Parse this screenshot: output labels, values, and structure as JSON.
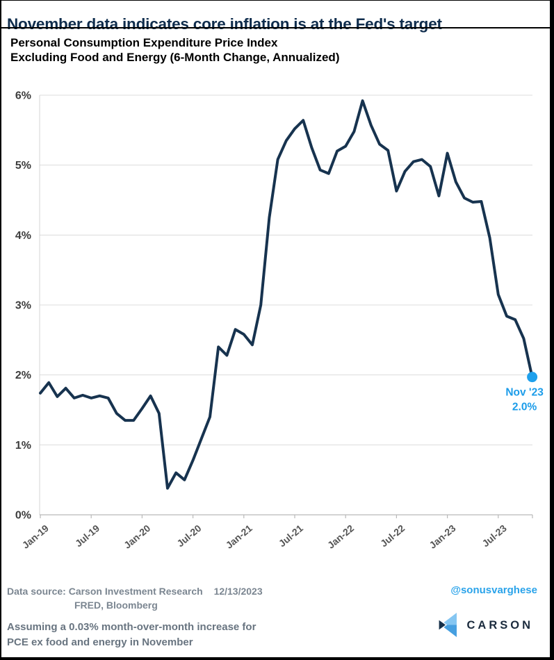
{
  "header": {
    "title": "November data indicates core inflation is at the Fed's target",
    "subtitle_line1": "Personal Consumption Expenditure Price Index",
    "subtitle_line2": "Excluding Food and Energy (6-Month Change, Annualized)"
  },
  "chart_data": {
    "type": "line",
    "title": "Personal Consumption Expenditure Price Index Excluding Food and Energy (6-Month Change, Annualized)",
    "x": [
      "Jan-19",
      "Feb-19",
      "Mar-19",
      "Apr-19",
      "May-19",
      "Jun-19",
      "Jul-19",
      "Aug-19",
      "Sep-19",
      "Oct-19",
      "Nov-19",
      "Dec-19",
      "Jan-20",
      "Feb-20",
      "Mar-20",
      "Apr-20",
      "May-20",
      "Jun-20",
      "Jul-20",
      "Aug-20",
      "Sep-20",
      "Oct-20",
      "Nov-20",
      "Dec-20",
      "Jan-21",
      "Feb-21",
      "Mar-21",
      "Apr-21",
      "May-21",
      "Jun-21",
      "Jul-21",
      "Aug-21",
      "Sep-21",
      "Oct-21",
      "Nov-21",
      "Dec-21",
      "Jan-22",
      "Feb-22",
      "Mar-22",
      "Apr-22",
      "May-22",
      "Jun-22",
      "Jul-22",
      "Aug-22",
      "Sep-22",
      "Oct-22",
      "Nov-22",
      "Dec-22",
      "Jan-23",
      "Feb-23",
      "Mar-23",
      "Apr-23",
      "May-23",
      "Jun-23",
      "Jul-23",
      "Aug-23",
      "Sep-23",
      "Oct-23",
      "Nov-23"
    ],
    "values": [
      1.74,
      1.89,
      1.69,
      1.81,
      1.67,
      1.71,
      1.67,
      1.7,
      1.67,
      1.45,
      1.35,
      1.35,
      1.52,
      1.7,
      1.45,
      0.38,
      0.6,
      0.5,
      0.78,
      1.09,
      1.4,
      2.4,
      2.28,
      2.65,
      2.58,
      2.43,
      3.0,
      4.25,
      5.08,
      5.35,
      5.52,
      5.64,
      5.25,
      4.93,
      4.88,
      5.2,
      5.27,
      5.48,
      5.92,
      5.57,
      5.3,
      5.21,
      4.63,
      4.91,
      5.05,
      5.08,
      4.98,
      4.56,
      5.17,
      4.76,
      4.53,
      4.47,
      4.48,
      3.96,
      3.15,
      2.84,
      2.79,
      2.52,
      1.97
    ],
    "x_tick_labels": [
      "Jan-19",
      "Jul-19",
      "Jan-20",
      "Jul-20",
      "Jan-21",
      "Jul-21",
      "Jan-22",
      "Jul-22",
      "Jan-23",
      "Jul-23"
    ],
    "y_tick_labels": [
      "0%",
      "1%",
      "2%",
      "3%",
      "4%",
      "5%",
      "6%"
    ],
    "ylim": [
      0,
      6
    ],
    "grid": "horizontal",
    "legend": "none",
    "line_color": "#17334F",
    "marker": {
      "x": "Nov-23",
      "value": 2.0,
      "color": "#1EA0EC"
    },
    "annotation": {
      "line1": "Nov '23",
      "line2": "2.0%",
      "color": "#1B9CE9"
    }
  },
  "footer": {
    "data_source_label": "Data source:",
    "source_primary": "Carson Investment Research",
    "source_date": "12/13/2023",
    "source_secondary": "FRED, Bloomberg",
    "twitter_handle": "@sonusvarghese",
    "note_line1": "Assuming a 0.03% month-over-month increase for",
    "note_line2": "PCE ex food and energy in November",
    "logo_text": "CARSON"
  },
  "colors": {
    "title_navy": "#0F2D4D",
    "line_navy": "#17334F",
    "accent_blue": "#1EA0EC",
    "handle_blue": "#2AA3EA",
    "gridline_gray": "#DCDCDC",
    "footer_gray": "#7B8691"
  }
}
